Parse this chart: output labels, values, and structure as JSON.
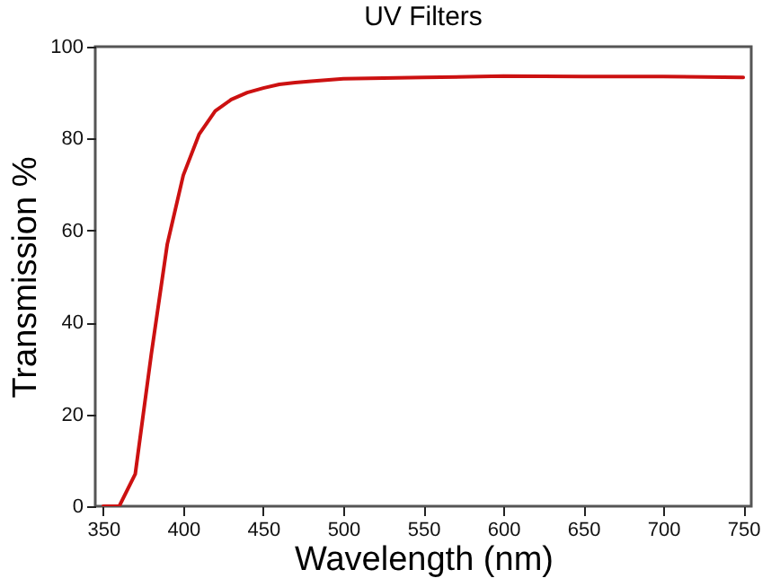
{
  "chart_data": {
    "type": "line",
    "title": "UV Filters",
    "xlabel": "Wavelength (nm)",
    "ylabel": "Transmission %",
    "x": [
      350,
      360,
      370,
      380,
      390,
      400,
      410,
      420,
      430,
      440,
      450,
      460,
      470,
      480,
      500,
      550,
      600,
      650,
      700,
      750
    ],
    "series": [
      {
        "color": "#cc1111",
        "values": [
          0,
          0,
          7,
          33,
          57,
          72,
          81,
          86,
          88.5,
          90,
          91,
          91.8,
          92.2,
          92.5,
          93,
          93.3,
          93.6,
          93.5,
          93.5,
          93.3
        ]
      }
    ],
    "xlim": [
      345,
      755
    ],
    "xticks": [
      350,
      400,
      450,
      500,
      550,
      600,
      650,
      700,
      750
    ],
    "ylim": [
      0,
      100
    ],
    "yticks": [
      0,
      20,
      40,
      60,
      80,
      100
    ],
    "grid": false,
    "marker": "none",
    "line_style": "solid"
  }
}
